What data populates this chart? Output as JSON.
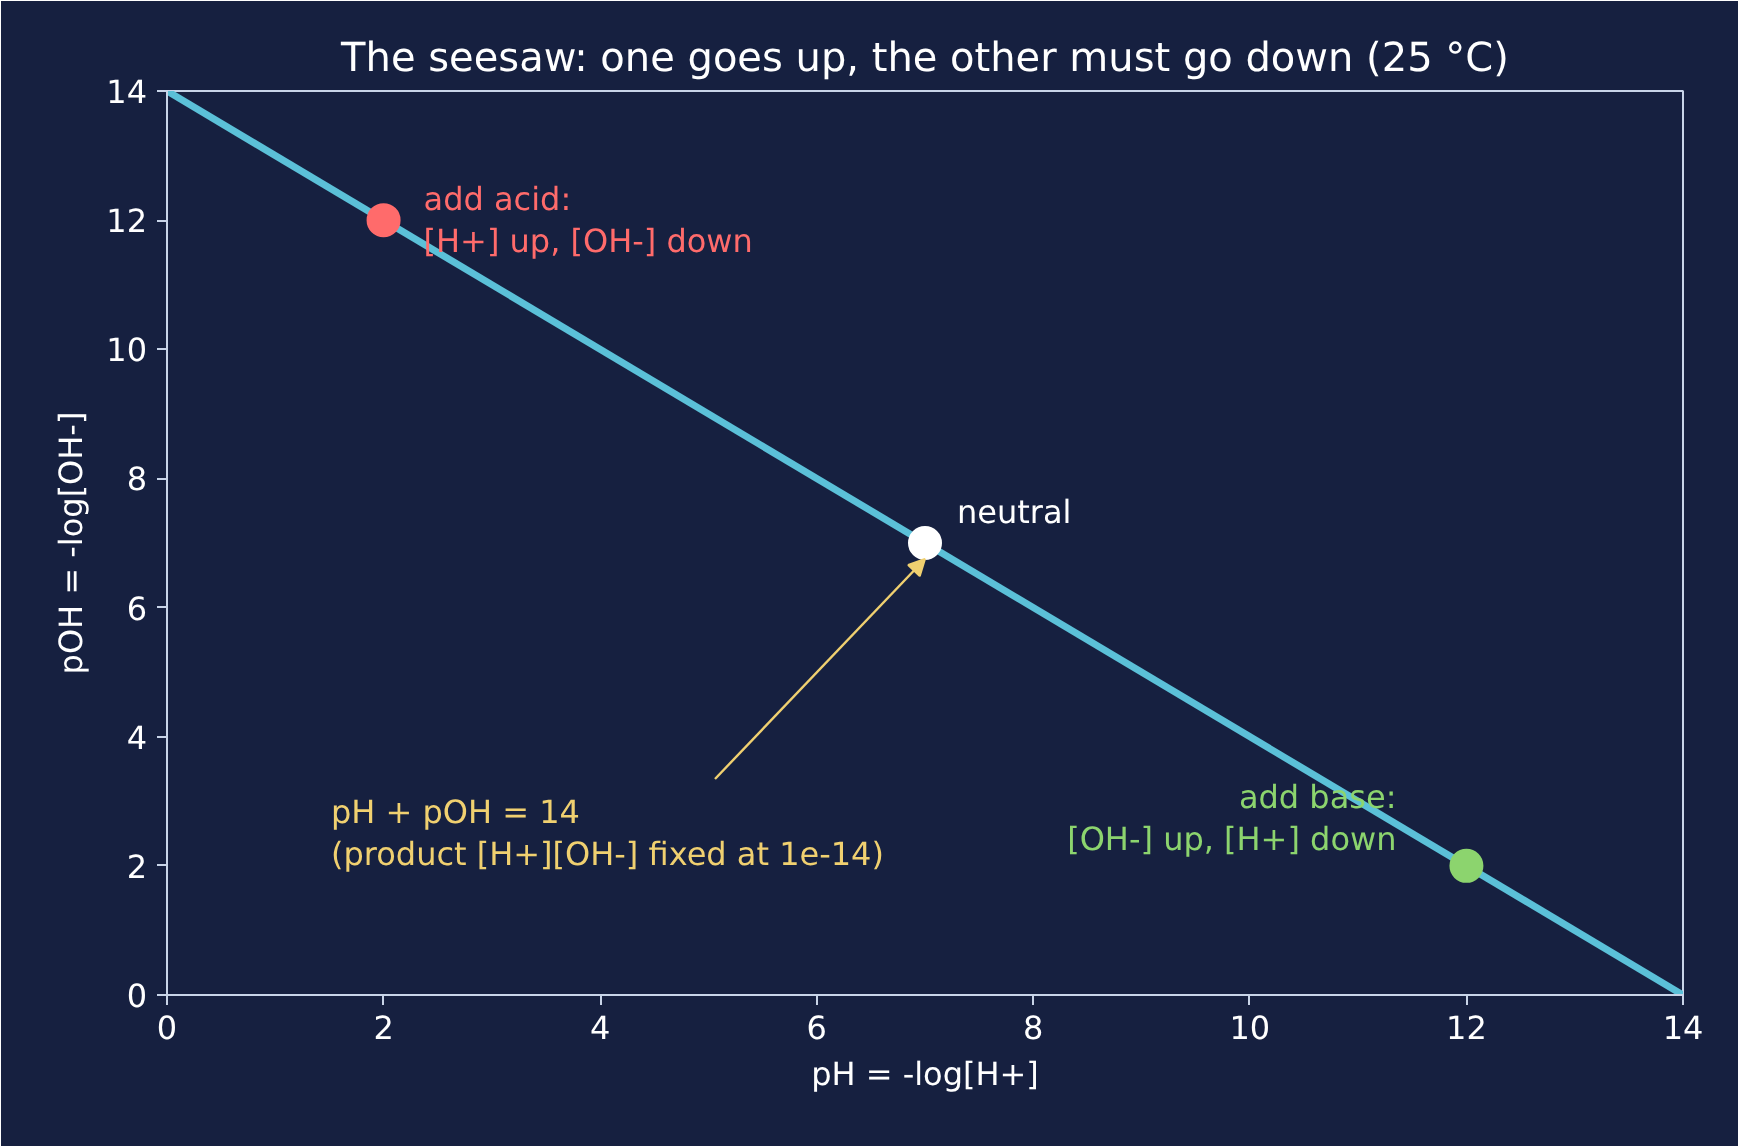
{
  "chart_data": {
    "type": "scatter",
    "title": "The seesaw: one goes up, the other must go down (25 °C)",
    "xlabel": "pH = -log[H+]",
    "ylabel": "pOH = -log[OH-]",
    "series": [
      {
        "type": "line",
        "x": [
          0,
          14
        ],
        "values": [
          14,
          0
        ],
        "color": "#5bc0d8"
      },
      {
        "x": [
          2,
          7,
          12
        ],
        "values": [
          12,
          7,
          2
        ],
        "colors": [
          "#ff6b6b",
          "#ffffff",
          "#8cd46e"
        ],
        "marker": "circle"
      }
    ],
    "annotations": [
      {
        "text": "add acid:\n[H+] up, [OH-] down",
        "x": 2,
        "y": 12
      },
      {
        "text": "neutral",
        "x": 7,
        "y": 7
      },
      {
        "text": "add base:\n[OH-] up, [H+] down",
        "x": 12,
        "y": 2
      },
      {
        "text": "pH + pOH = 14\n(product [H+][OH-] fixed at 1e-14)",
        "x": 7,
        "y": 7
      }
    ],
    "xlim": [
      0,
      14
    ],
    "ylim": [
      0,
      14
    ],
    "xticks": [
      0,
      2,
      4,
      6,
      8,
      10,
      12,
      14
    ],
    "yticks": [
      0,
      2,
      4,
      6,
      8,
      10,
      12,
      14
    ],
    "grid": false
  }
}
